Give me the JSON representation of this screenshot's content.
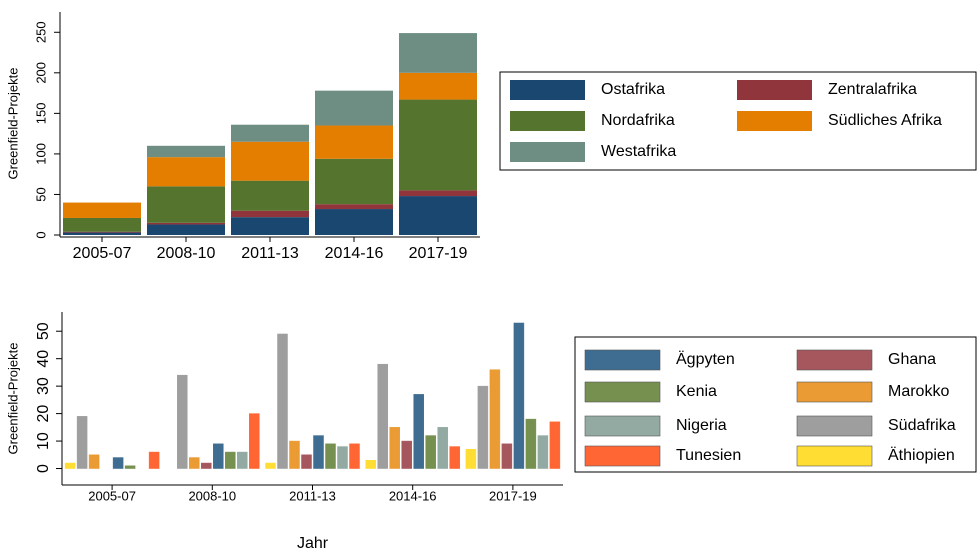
{
  "chart_data": [
    {
      "type": "stacked_bar",
      "y_label": "Greenfield-Projekte",
      "categories": [
        "2005-07",
        "2008-10",
        "2011-13",
        "2014-16",
        "2017-19"
      ],
      "series": [
        {
          "name": "Ostafrika",
          "color": "#1a476f",
          "values": [
            3,
            13,
            22,
            32,
            48
          ]
        },
        {
          "name": "Zentralafrika",
          "color": "#90353b",
          "values": [
            1,
            2,
            8,
            6,
            7
          ]
        },
        {
          "name": "Nordafrika",
          "color": "#55752f",
          "values": [
            17,
            45,
            37,
            56,
            112
          ]
        },
        {
          "name": "Südliches Afrika",
          "color": "#e37e00",
          "values": [
            19,
            36,
            48,
            41,
            33
          ]
        },
        {
          "name": "Westafrika",
          "color": "#6e8e84",
          "values": [
            0,
            14,
            21,
            43,
            49
          ]
        }
      ],
      "ylim": [
        0,
        275
      ],
      "yticks": [
        0,
        50,
        100,
        150,
        200,
        250
      ],
      "grid": false
    },
    {
      "type": "grouped_bar",
      "y_label": "Greenfield-Projekte",
      "x_label": "Jahr",
      "categories": [
        "2005-07",
        "2008-10",
        "2011-13",
        "2014-16",
        "2017-19"
      ],
      "series": [
        {
          "name": "Ägpyten",
          "color": "#3e6d91",
          "values": [
            4,
            9,
            12,
            27,
            53
          ]
        },
        {
          "name": "Ghana",
          "color": "#a6575d",
          "values": [
            0,
            2,
            5,
            10,
            9
          ]
        },
        {
          "name": "Kenia",
          "color": "#76904f",
          "values": [
            1,
            6,
            9,
            12,
            18
          ]
        },
        {
          "name": "Marokko",
          "color": "#eb9b33",
          "values": [
            5,
            4,
            10,
            15,
            36
          ]
        },
        {
          "name": "Nigeria",
          "color": "#92aaa2",
          "values": [
            0,
            6,
            8,
            15,
            12
          ]
        },
        {
          "name": "Südafrika",
          "color": "#9e9e9e",
          "values": [
            19,
            34,
            49,
            38,
            30
          ]
        },
        {
          "name": "Tunesien",
          "color": "#ff6633",
          "values": [
            6,
            20,
            9,
            8,
            17
          ]
        },
        {
          "name": "Äthiopien",
          "color": "#ffdd33",
          "values": [
            2,
            0,
            2,
            3,
            7
          ]
        }
      ],
      "ylim": [
        -6,
        57
      ],
      "yticks": [
        0,
        10,
        20,
        30,
        40,
        50
      ],
      "grid": false
    }
  ]
}
